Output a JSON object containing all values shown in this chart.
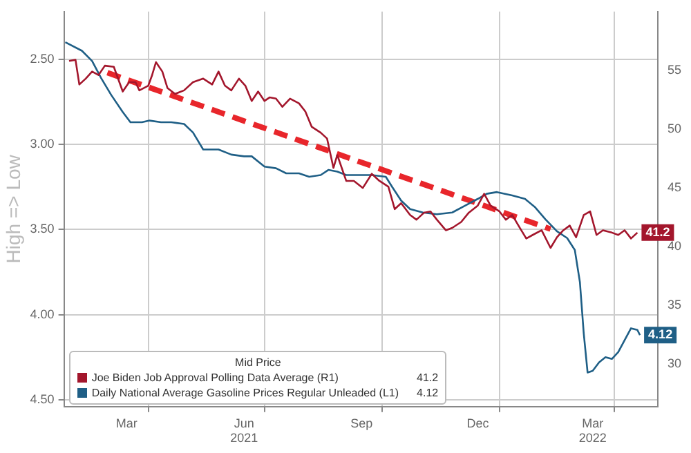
{
  "chart_data": {
    "type": "line",
    "ylabel": "High => Low",
    "legend_title": "Mid Price",
    "legend": "bottom left",
    "grid": true,
    "xlim": [
      "2021-01-25",
      "2022-05-05"
    ],
    "xticks": [
      {
        "value": "2021-03-15",
        "label": "Mar"
      },
      {
        "value": "2021-04-01",
        "label": null
      },
      {
        "value": "2021-06-15",
        "label": "Jun\n2021"
      },
      {
        "value": "2021-07-01",
        "label": null
      },
      {
        "value": "2021-09-15",
        "label": "Sep"
      },
      {
        "value": "2021-10-01",
        "label": null
      },
      {
        "value": "2021-12-15",
        "label": "Dec"
      },
      {
        "value": "2022-01-01",
        "label": null
      },
      {
        "value": "2022-03-15",
        "label": "Mar\n2022"
      },
      {
        "value": "2022-04-01",
        "label": null
      }
    ],
    "ylim": [
      4.54,
      2.22
    ],
    "yticks": [
      {
        "value": 2.5,
        "label": "2.50"
      },
      {
        "value": 3,
        "label": "3.00"
      },
      {
        "value": 3.5,
        "label": "3.50"
      },
      {
        "value": 4,
        "label": "4.00"
      },
      {
        "value": 4.5,
        "label": "4.50"
      }
    ],
    "y2lim": [
      26.4,
      60
    ],
    "y2ticks": [
      30,
      35,
      40,
      45,
      50,
      55
    ],
    "series": [
      {
        "name": "Joe Biden Job Approval Polling Data Average (R1)",
        "color": "#a3162c",
        "axis": "y2",
        "x": [
          "2021-01-29",
          "2021-02-03",
          "2021-02-06",
          "2021-02-11",
          "2021-02-16",
          "2021-02-21",
          "2021-02-26",
          "2021-03-05",
          "2021-03-12",
          "2021-03-17",
          "2021-03-22",
          "2021-03-25",
          "2021-04-01",
          "2021-04-04",
          "2021-04-07",
          "2021-04-12",
          "2021-04-16",
          "2021-04-22",
          "2021-04-29",
          "2021-05-06",
          "2021-05-14",
          "2021-05-21",
          "2021-05-26",
          "2021-05-31",
          "2021-06-05",
          "2021-06-11",
          "2021-06-16",
          "2021-06-21",
          "2021-06-26",
          "2021-07-01",
          "2021-07-05",
          "2021-07-10",
          "2021-07-15",
          "2021-07-21",
          "2021-07-28",
          "2021-08-02",
          "2021-08-07",
          "2021-08-14",
          "2021-08-19",
          "2021-08-24",
          "2021-08-27",
          "2021-09-03",
          "2021-09-09",
          "2021-09-16",
          "2021-09-23",
          "2021-09-29",
          "2021-10-06",
          "2021-10-11",
          "2021-10-16",
          "2021-10-23",
          "2021-10-28",
          "2021-11-03",
          "2021-11-08",
          "2021-11-13",
          "2021-11-20",
          "2021-11-25",
          "2021-12-02",
          "2021-12-08",
          "2021-12-15",
          "2021-12-20",
          "2021-12-25",
          "2022-01-01",
          "2022-01-06",
          "2022-01-11",
          "2022-01-17",
          "2022-01-22",
          "2022-01-27",
          "2022-02-03",
          "2022-02-10",
          "2022-02-15",
          "2022-02-20",
          "2022-02-25",
          "2022-03-02",
          "2022-03-08",
          "2022-03-13",
          "2022-03-18",
          "2022-03-23",
          "2022-03-30",
          "2022-04-04",
          "2022-04-09",
          "2022-04-14",
          "2022-04-19"
        ],
        "values": [
          55.8,
          55.9,
          53.8,
          54.3,
          54.9,
          54.6,
          55.4,
          55.3,
          53.2,
          54.0,
          54.0,
          53.3,
          53.7,
          54.6,
          55.7,
          54.9,
          53.5,
          53.0,
          53.3,
          54.0,
          54.3,
          53.8,
          54.9,
          53.7,
          53.3,
          54.3,
          53.7,
          52.4,
          53.2,
          52.4,
          52.7,
          52.6,
          51.9,
          52.6,
          52.2,
          51.5,
          50.2,
          49.7,
          49.2,
          46.7,
          47.8,
          45.6,
          45.6,
          45.0,
          46.2,
          45.6,
          45.1,
          43.2,
          43.7,
          42.7,
          42.3,
          42.9,
          43.0,
          42.3,
          41.4,
          41.6,
          42.1,
          42.9,
          43.5,
          44.5,
          43.5,
          43.0,
          42.3,
          42.7,
          41.6,
          40.7,
          41.0,
          41.4,
          39.9,
          40.8,
          41.4,
          41.8,
          40.8,
          42.7,
          43.0,
          41.0,
          41.4,
          41.2,
          41.0,
          41.4,
          40.7,
          41.2
        ],
        "value_labels": [
          null,
          null,
          null,
          null,
          null,
          null,
          null,
          null,
          null,
          null,
          null,
          null,
          null,
          null,
          null,
          null,
          null,
          null,
          null,
          null,
          null,
          null,
          null,
          null,
          null,
          null,
          null,
          null,
          null,
          null,
          null,
          null,
          null,
          null,
          null,
          null,
          null,
          null,
          null,
          null,
          null,
          null,
          null,
          null,
          null,
          null,
          null,
          null,
          null,
          null,
          null,
          null,
          null,
          null,
          null,
          null,
          null,
          null,
          null,
          null,
          null,
          null,
          null,
          null,
          null,
          null,
          null,
          null,
          null,
          null,
          null,
          null,
          null,
          null,
          null,
          null,
          null,
          null,
          null,
          null,
          null,
          "41.2"
        ]
      },
      {
        "name": "Daily National Average Gasoline Prices Regular Unleaded (L1)",
        "color": "#1f5f86",
        "x": [
          "2021-01-26",
          "2021-02-08",
          "2021-02-16",
          "2021-02-23",
          "2021-03-03",
          "2021-03-12",
          "2021-03-18",
          "2021-03-27",
          "2021-04-02",
          "2021-04-11",
          "2021-04-19",
          "2021-04-29",
          "2021-05-06",
          "2021-05-14",
          "2021-05-26",
          "2021-06-05",
          "2021-06-15",
          "2021-06-21",
          "2021-07-01",
          "2021-07-10",
          "2021-07-18",
          "2021-07-28",
          "2021-08-05",
          "2021-08-14",
          "2021-08-20",
          "2021-08-27",
          "2021-09-03",
          "2021-09-13",
          "2021-09-23",
          "2021-10-04",
          "2021-10-09",
          "2021-10-16",
          "2021-10-23",
          "2021-11-02",
          "2021-11-13",
          "2021-11-25",
          "2021-12-05",
          "2021-12-15",
          "2021-12-22",
          "2021-12-30",
          "2022-01-11",
          "2022-01-21",
          "2022-01-29",
          "2022-02-06",
          "2022-02-15",
          "2022-02-23",
          "2022-03-01",
          "2022-03-05",
          "2022-03-08",
          "2022-03-11",
          "2022-03-15",
          "2022-03-20",
          "2022-03-25",
          "2022-03-30",
          "2022-04-04",
          "2022-04-09",
          "2022-04-14",
          "2022-04-19",
          "2022-04-21"
        ],
        "values": [
          2.4,
          2.45,
          2.51,
          2.61,
          2.71,
          2.81,
          2.87,
          2.87,
          2.86,
          2.87,
          2.87,
          2.88,
          2.93,
          3.03,
          3.03,
          3.06,
          3.07,
          3.07,
          3.13,
          3.14,
          3.17,
          3.17,
          3.19,
          3.18,
          3.15,
          3.16,
          3.18,
          3.18,
          3.18,
          3.19,
          3.25,
          3.33,
          3.38,
          3.4,
          3.41,
          3.4,
          3.36,
          3.32,
          3.29,
          3.28,
          3.3,
          3.32,
          3.37,
          3.44,
          3.51,
          3.55,
          3.62,
          3.81,
          4.11,
          4.34,
          4.33,
          4.28,
          4.25,
          4.26,
          4.22,
          4.15,
          4.08,
          4.09,
          4.12
        ],
        "value_labels": [
          null,
          null,
          null,
          null,
          null,
          null,
          null,
          null,
          null,
          null,
          null,
          null,
          null,
          null,
          null,
          null,
          null,
          null,
          null,
          null,
          null,
          null,
          null,
          null,
          null,
          null,
          null,
          null,
          null,
          null,
          null,
          null,
          null,
          null,
          null,
          null,
          null,
          null,
          null,
          null,
          null,
          null,
          null,
          null,
          null,
          null,
          null,
          null,
          null,
          null,
          null,
          null,
          null,
          null,
          null,
          null,
          null,
          null,
          "4.12"
        ]
      },
      {
        "type": "line",
        "color": "#e8262b",
        "axis": "y2",
        "line_style": "dashed",
        "x": [
          "2021-02-28",
          "2022-02-10"
        ],
        "values": [
          54.8,
          41.5
        ]
      }
    ]
  }
}
